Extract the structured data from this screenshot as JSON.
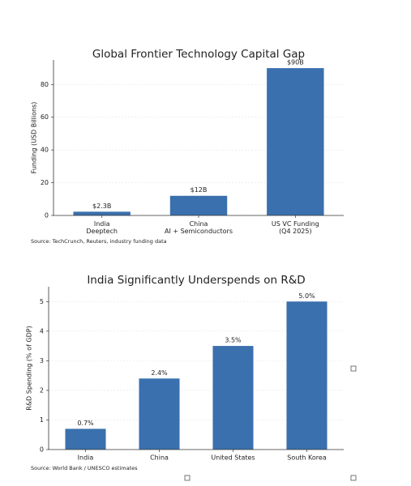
{
  "chart_data": [
    {
      "type": "bar",
      "title": "Global Frontier Technology Capital Gap",
      "y_label": "Funding (USD Billions)",
      "categories": [
        "India\nDeeptech",
        "China\nAI + Semiconductors",
        "US VC Funding\n(Q4 2025)"
      ],
      "values": [
        2.3,
        12,
        90
      ],
      "value_labels": [
        "$2.3B",
        "$12B",
        "$90B"
      ],
      "color": "#3a70ad",
      "ylim": [
        0,
        95
      ],
      "yticks": [
        0,
        20,
        40,
        60,
        80
      ],
      "grid": true,
      "source": "Source: TechCrunch, Reuters, industry funding data"
    },
    {
      "type": "bar",
      "title": "India Significantly Underspends on R&D",
      "y_label": "R&D Spending (% of GDP)",
      "categories": [
        "India",
        "China",
        "United States",
        "South Korea"
      ],
      "values": [
        0.7,
        2.4,
        3.5,
        5.0
      ],
      "value_labels": [
        "0.7%",
        "2.4%",
        "3.5%",
        "5.0%"
      ],
      "color": "#3a70ad",
      "ylim": [
        0,
        5.5
      ],
      "yticks": [
        0,
        1,
        2,
        3,
        4,
        5
      ],
      "grid": true,
      "source": "Source: World Bank / UNESCO estimates"
    }
  ]
}
